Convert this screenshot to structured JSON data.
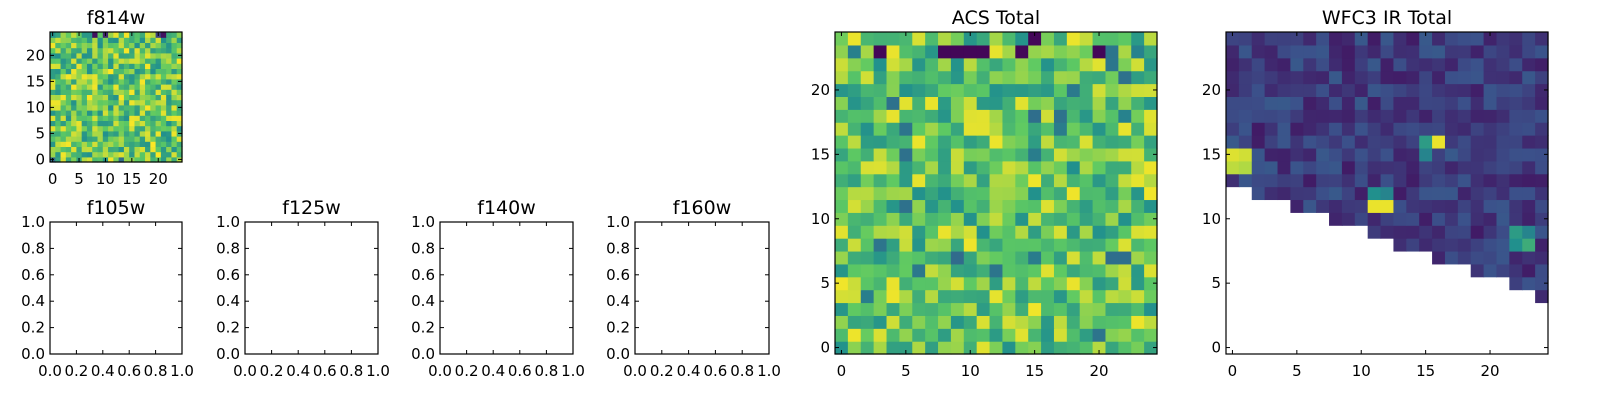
{
  "colormap": "viridis",
  "colormap_stops": [
    "#440154",
    "#3b528b",
    "#21908d",
    "#5dc963",
    "#fde725"
  ],
  "background": "#ffffff",
  "chart_data": [
    {
      "id": "f814w",
      "type": "heatmap",
      "title": "f814w",
      "grid_size": [
        25,
        25
      ],
      "xlim": [
        -0.5,
        24.5
      ],
      "ylim": [
        -0.5,
        24.5
      ],
      "xticks": [
        0,
        5,
        10,
        15,
        20
      ],
      "yticks": [
        0,
        5,
        10,
        15,
        20
      ],
      "values": "seeded noise, values 0.5-0.95 of colormap range, a few dark cells along top row",
      "grid": false
    },
    {
      "id": "f105w",
      "type": "heatmap",
      "title": "f105w",
      "empty": true,
      "xlim": [
        0.0,
        1.0
      ],
      "ylim": [
        0.0,
        1.0
      ],
      "xticks": [
        "0.0",
        "0.2",
        "0.4",
        "0.6",
        "0.8",
        "1.0"
      ],
      "yticks": [
        "0.0",
        "0.2",
        "0.4",
        "0.6",
        "0.8",
        "1.0"
      ]
    },
    {
      "id": "f125w",
      "type": "heatmap",
      "title": "f125w",
      "empty": true,
      "xlim": [
        0.0,
        1.0
      ],
      "ylim": [
        0.0,
        1.0
      ],
      "xticks": [
        "0.0",
        "0.2",
        "0.4",
        "0.6",
        "0.8",
        "1.0"
      ],
      "yticks": [
        "0.0",
        "0.2",
        "0.4",
        "0.6",
        "0.8",
        "1.0"
      ]
    },
    {
      "id": "f140w",
      "type": "heatmap",
      "title": "f140w",
      "empty": true,
      "xlim": [
        0.0,
        1.0
      ],
      "ylim": [
        0.0,
        1.0
      ],
      "xticks": [
        "0.0",
        "0.2",
        "0.4",
        "0.6",
        "0.8",
        "1.0"
      ],
      "yticks": [
        "0.0",
        "0.2",
        "0.4",
        "0.6",
        "0.8",
        "1.0"
      ]
    },
    {
      "id": "f160w",
      "type": "heatmap",
      "title": "f160w",
      "empty": true,
      "xlim": [
        0.0,
        1.0
      ],
      "ylim": [
        0.0,
        1.0
      ],
      "xticks": [
        "0.0",
        "0.2",
        "0.4",
        "0.6",
        "0.8",
        "1.0"
      ],
      "yticks": [
        "0.0",
        "0.2",
        "0.4",
        "0.6",
        "0.8",
        "1.0"
      ]
    },
    {
      "id": "acs_total",
      "type": "heatmap",
      "title": "ACS Total",
      "grid_size": [
        25,
        25
      ],
      "xlim": [
        -0.5,
        24.5
      ],
      "ylim": [
        -0.5,
        24.5
      ],
      "xticks": [
        0,
        5,
        10,
        15,
        20
      ],
      "yticks": [
        0,
        5,
        10,
        15,
        20
      ],
      "dark_cells": [
        [
          3,
          23
        ],
        [
          8,
          23
        ],
        [
          9,
          23
        ],
        [
          10,
          23
        ],
        [
          11,
          23
        ],
        [
          14,
          23
        ],
        [
          20,
          23
        ],
        [
          15,
          24
        ]
      ],
      "grid": false
    },
    {
      "id": "wfc3_ir_total",
      "type": "heatmap",
      "title": "WFC3 IR Total",
      "grid_size": [
        25,
        25
      ],
      "xlim": [
        -0.5,
        24.5
      ],
      "ylim": [
        -0.5,
        24.5
      ],
      "xticks": [
        0,
        5,
        10,
        15,
        20
      ],
      "yticks": [
        0,
        5,
        10,
        15,
        20
      ],
      "masked_lower_right": true,
      "bright_cells": [
        [
          0,
          15,
          0.95
        ],
        [
          0,
          14,
          0.9
        ],
        [
          1,
          15,
          0.93
        ],
        [
          1,
          14,
          0.88
        ],
        [
          11,
          11,
          0.97
        ],
        [
          12,
          11,
          0.97
        ],
        [
          11,
          12,
          0.5
        ],
        [
          12,
          12,
          0.45
        ],
        [
          15,
          16,
          0.55
        ],
        [
          16,
          16,
          0.97
        ],
        [
          15,
          15,
          0.45
        ],
        [
          22,
          9,
          0.55
        ],
        [
          22,
          8,
          0.5
        ],
        [
          23,
          9,
          0.45
        ],
        [
          23,
          8,
          0.62
        ]
      ],
      "grid": false
    }
  ]
}
